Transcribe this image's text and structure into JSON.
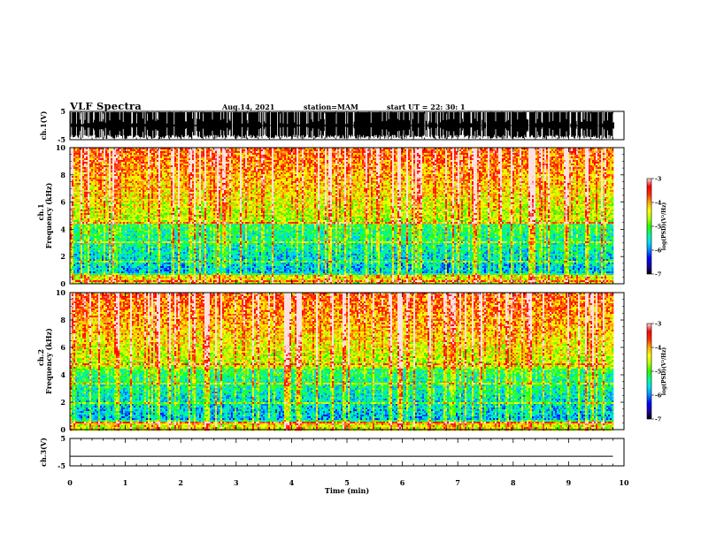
{
  "header": {
    "title": "VLF Spectra",
    "date": "Aug.14, 2021",
    "station": "station=MAM",
    "start": "start UT =  22: 30: 1"
  },
  "colorbar": {
    "label": "log(PSD)(V²/Hz)",
    "ticks": [
      -3,
      -4,
      -5,
      -6,
      -7
    ],
    "colors": [
      "#000000",
      "#1a00a8",
      "#0000ff",
      "#0088ff",
      "#00ddff",
      "#00ff88",
      "#22ff00",
      "#b8ff00",
      "#ffff00",
      "#ffaa00",
      "#ff3000",
      "#ff0000",
      "#ffe0e0"
    ]
  },
  "chart_data": [
    {
      "type": "line",
      "name": "waveform-ch1",
      "ylabel": "ch.1(V)",
      "ylim": [
        -5,
        5
      ],
      "yticks": [
        5,
        -5
      ],
      "xlim": [
        0,
        10
      ],
      "description_values": "dense impulsive waveform filling most of the +/-5 V range"
    },
    {
      "type": "heatmap",
      "name": "spectrogram-ch1",
      "ylabel_1": "ch.1",
      "ylabel_2": "Frequency (kHz)",
      "ylim": [
        0,
        10
      ],
      "yticks": [
        0,
        2,
        4,
        6,
        8,
        10
      ],
      "xlim": [
        0,
        10
      ],
      "zlim": [
        -7,
        -3
      ],
      "zlabel": "log(PSD)(V²/Hz)"
    },
    {
      "type": "heatmap",
      "name": "spectrogram-ch2",
      "ylabel_1": "ch.2",
      "ylabel_2": "Frequency (kHz)",
      "ylim": [
        0,
        10
      ],
      "yticks": [
        0,
        2,
        4,
        6,
        8,
        10
      ],
      "xlim": [
        0,
        10
      ],
      "zlim": [
        -7,
        -3
      ],
      "zlabel": "log(PSD)(V²/Hz)"
    },
    {
      "type": "line",
      "name": "waveform-ch3",
      "ylabel": "ch.3(V)",
      "ylim": [
        -5,
        5
      ],
      "yticks": [
        5,
        -5
      ],
      "xlim": [
        0,
        10
      ],
      "x": [
        0,
        9.8
      ],
      "y": [
        -1.5,
        -1.5
      ]
    }
  ],
  "xaxis": {
    "label": "Time (min)",
    "ticks": [
      0,
      1,
      2,
      3,
      4,
      5,
      6,
      7,
      8,
      9,
      10
    ]
  }
}
